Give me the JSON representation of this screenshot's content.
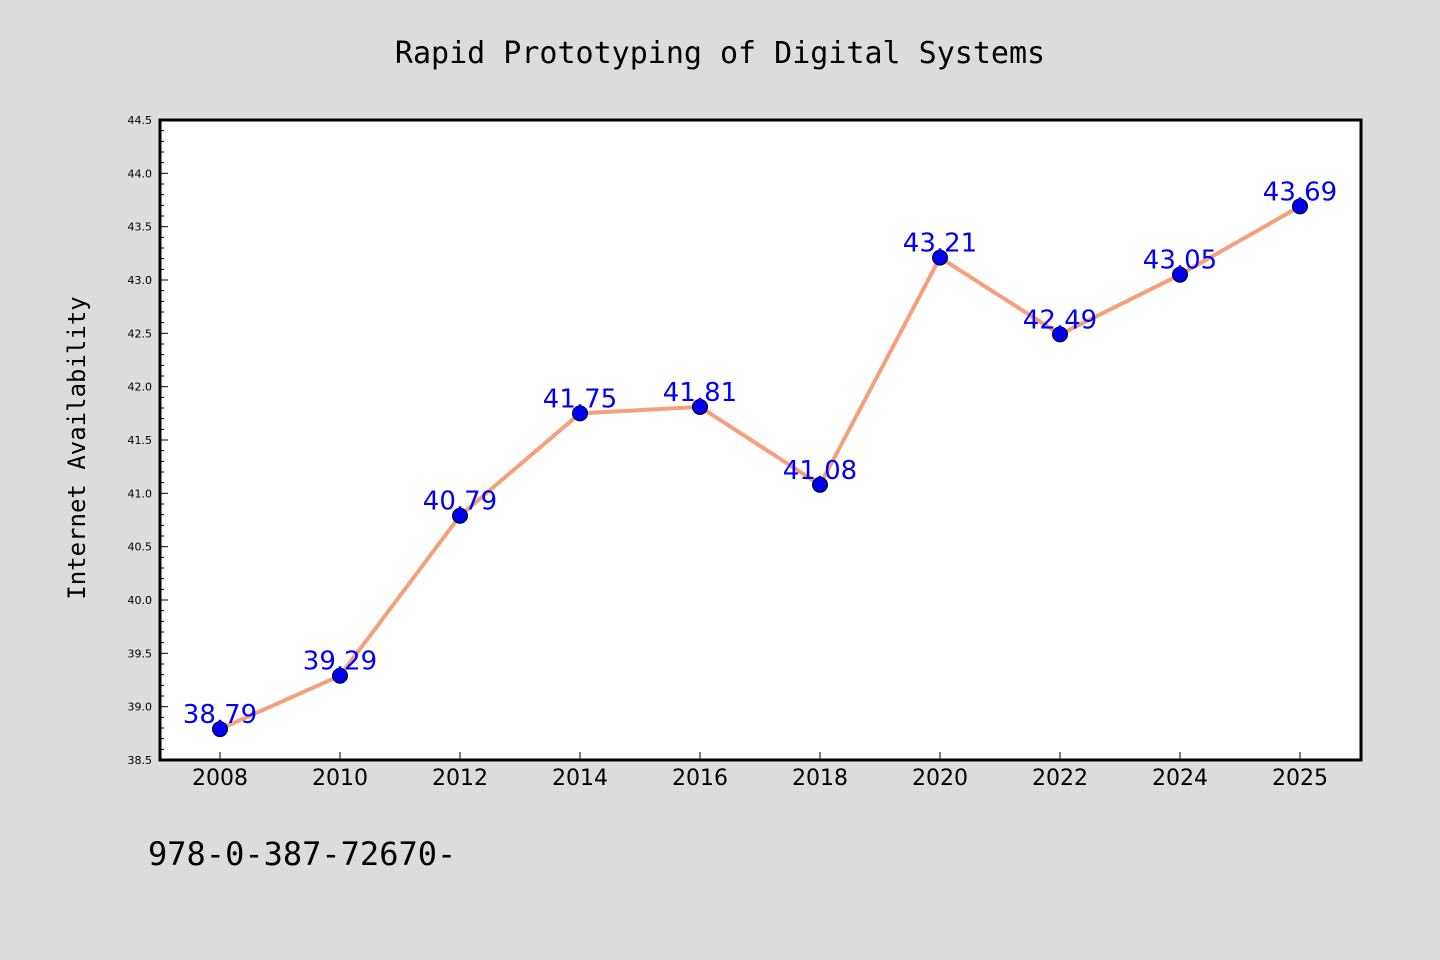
{
  "chart_data": {
    "type": "line",
    "title": "Rapid Prototyping of Digital Systems",
    "xlabel": "",
    "ylabel": "Internet Availability",
    "categories": [
      "2008",
      "2010",
      "2012",
      "2014",
      "2016",
      "2018",
      "2020",
      "2022",
      "2024",
      "2025"
    ],
    "series": [
      {
        "values": [
          38.79,
          39.29,
          40.79,
          41.75,
          41.81,
          41.08,
          43.21,
          42.49,
          43.05,
          43.69
        ],
        "data_labels": [
          "38.79",
          "39.29",
          "40.79",
          "41.75",
          "41.81",
          "41.08",
          "43.21",
          "42.49",
          "43.05",
          "43.69"
        ],
        "line_color": "#f4a07c",
        "marker_color": "#0000ee",
        "label_color": "#0000ff"
      }
    ],
    "ylim": [
      38.5,
      44.5
    ],
    "yticks": [
      "38.5",
      "39.0",
      "39.5",
      "40.0",
      "40.5",
      "41.0",
      "41.5",
      "42.0",
      "42.5",
      "43.0",
      "43.5",
      "44.0",
      "44.5"
    ],
    "grid": false,
    "legend": "none"
  },
  "footer_text": "978-0-387-72670-",
  "colors": {
    "background": "#dcdcdc",
    "plot_background": "#ffffff"
  }
}
